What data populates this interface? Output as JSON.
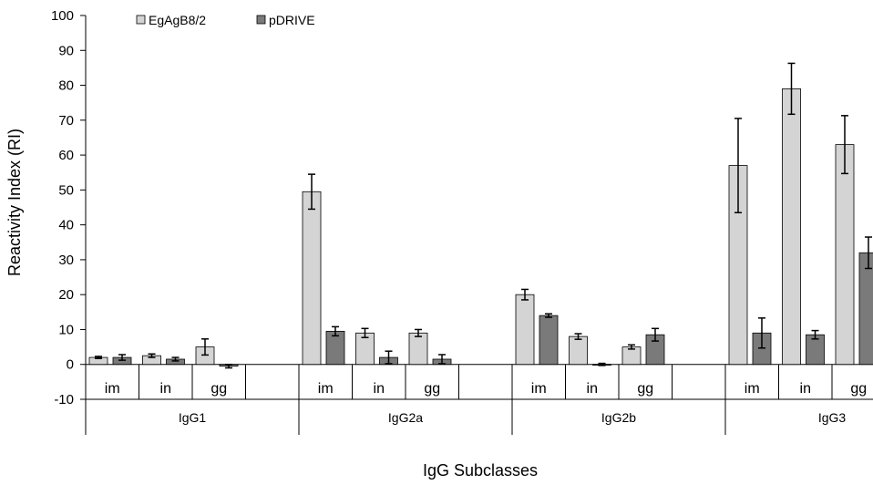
{
  "chart_data": {
    "type": "bar",
    "title": "",
    "xlabel": "IgG Subclasses",
    "ylabel": "Reactivity Index (RI)",
    "ylim": [
      -10,
      100
    ],
    "yticks": [
      -10,
      0,
      10,
      20,
      30,
      40,
      50,
      60,
      70,
      80,
      90,
      100
    ],
    "grid": false,
    "legend_position": "top-left",
    "groups": [
      "IgG1",
      "IgG2a",
      "IgG2b",
      "IgG3"
    ],
    "subcategories": [
      "im",
      "in",
      "gg"
    ],
    "series": [
      {
        "name": "EgAgB8/2",
        "color": "#d4d4d4",
        "values": [
          [
            2,
            2.5,
            5
          ],
          [
            49.5,
            9,
            9
          ],
          [
            20,
            8,
            5
          ],
          [
            57,
            79,
            63
          ]
        ],
        "errors": [
          [
            0.3,
            0.5,
            2.3
          ],
          [
            5,
            1.3,
            1
          ],
          [
            1.5,
            0.8,
            0.6
          ],
          [
            13.5,
            7.3,
            8.3
          ]
        ]
      },
      {
        "name": "pDRIVE",
        "color": "#7a7a7a",
        "values": [
          [
            2,
            1.5,
            -0.5
          ],
          [
            9.5,
            2,
            1.5
          ],
          [
            14,
            0,
            8.5
          ],
          [
            9,
            8.5,
            32
          ]
        ],
        "errors": [
          [
            0.8,
            0.5,
            0.5
          ],
          [
            1.3,
            1.8,
            1.3
          ],
          [
            0.5,
            0.3,
            1.8
          ],
          [
            4.3,
            1.2,
            4.5
          ]
        ]
      }
    ]
  }
}
